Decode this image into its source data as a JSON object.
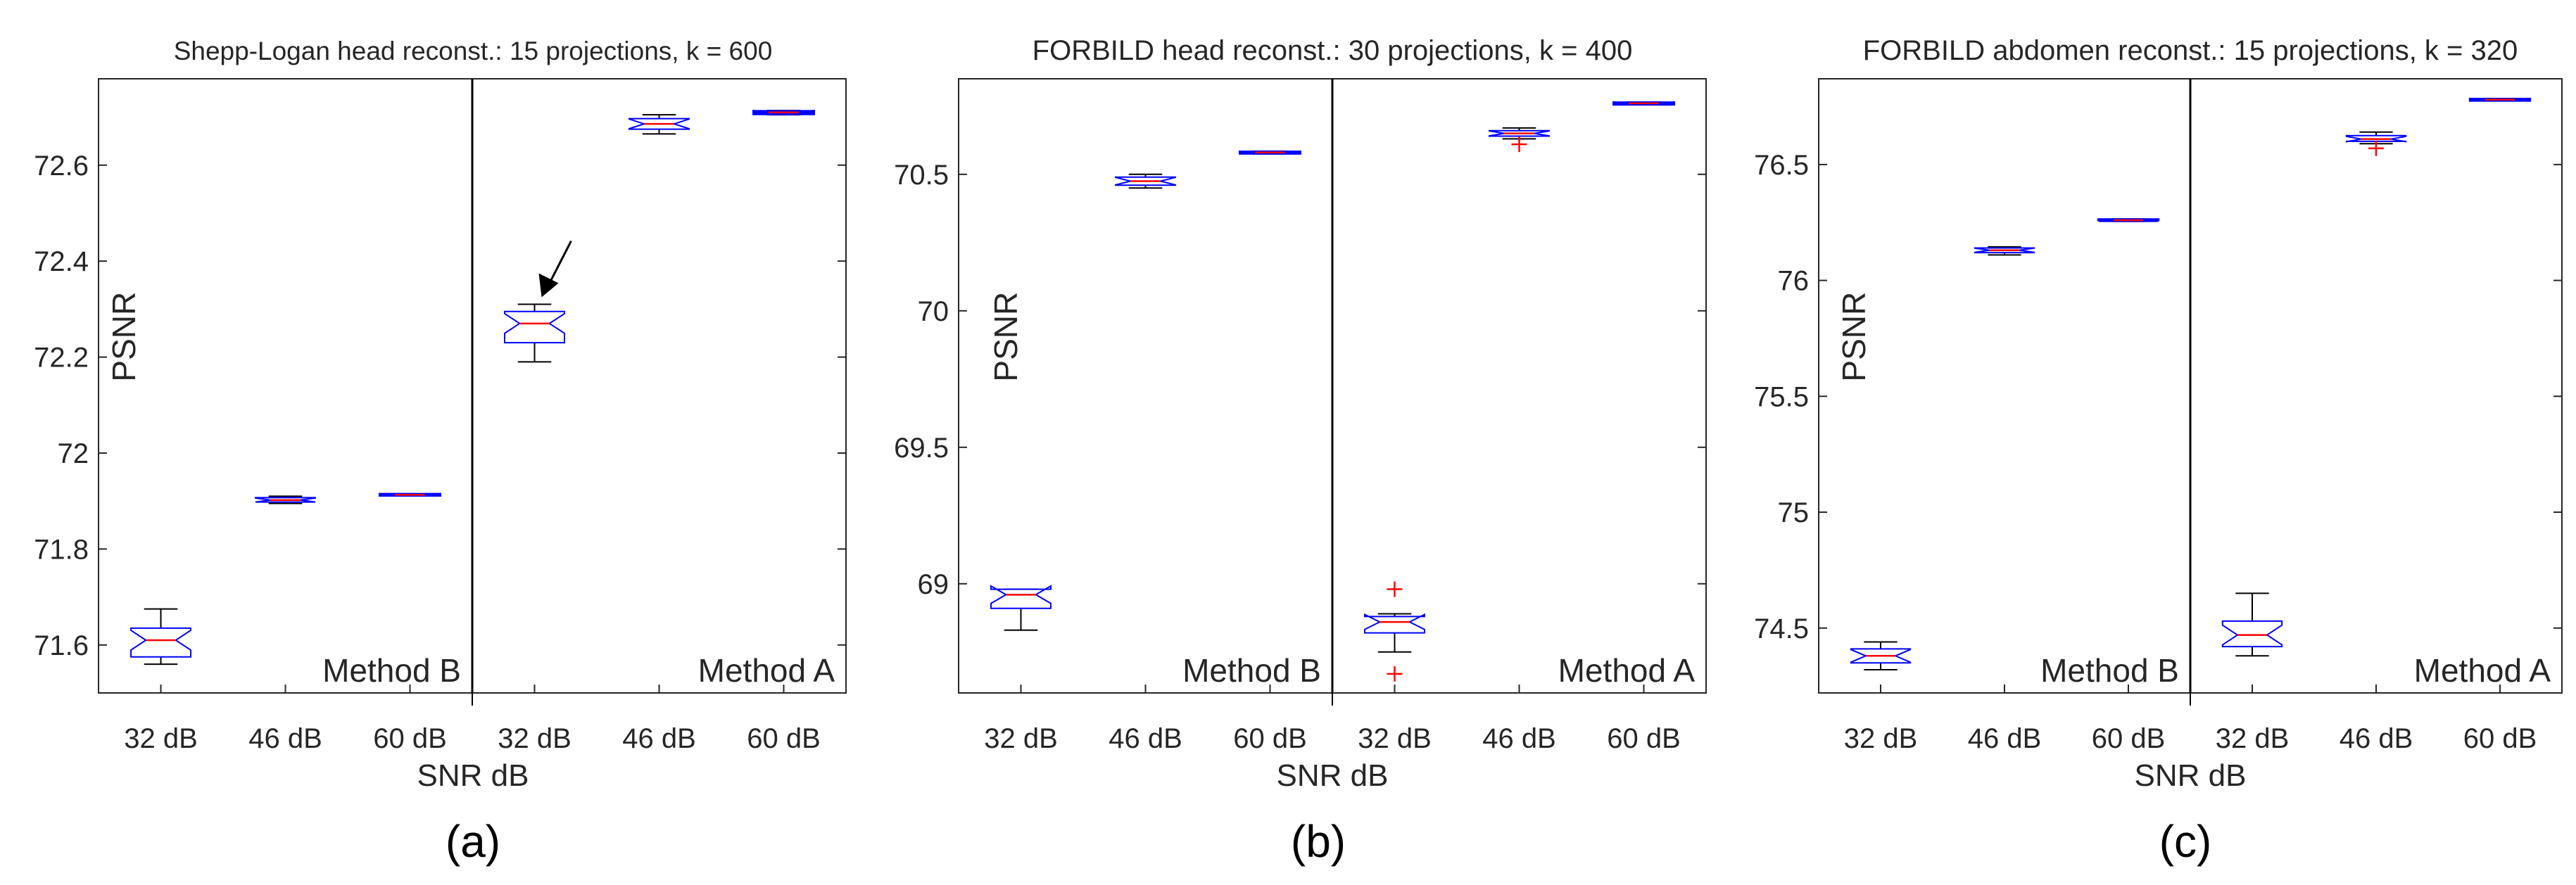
{
  "figure": {
    "xlabel_common": "SNR dB",
    "colors": {
      "axis": "#262626",
      "box": "#0000ff",
      "median": "#ff0000",
      "outlier": "#ff0000",
      "whisker": "#000000"
    }
  },
  "chart_data": [
    {
      "type": "box",
      "title": "Shepp-Logan head reconst.: 15 projections, k = 600",
      "caption": "(a)",
      "xlabel": "SNR dB",
      "ylabel": "PSNR",
      "ylim": [
        71.5,
        72.78
      ],
      "yticks": [
        71.6,
        71.8,
        72,
        72.2,
        72.4,
        72.6
      ],
      "ytick_labels": [
        "71.6",
        "71.8",
        "72",
        "72.2",
        "72.4",
        "72.6"
      ],
      "categories": [
        "32 dB",
        "46 dB",
        "60 dB",
        "32 dB",
        "46 dB",
        "60 dB"
      ],
      "groups": [
        "Method B",
        "Method A"
      ],
      "annotation": "arrow pointing to Method A, 32 dB box",
      "boxes": [
        {
          "label": "32 dB",
          "group": "Method B",
          "whisker_low": 71.56,
          "q1": 71.575,
          "median": 71.61,
          "q3": 71.635,
          "whisker_high": 71.675,
          "outliers": []
        },
        {
          "label": "46 dB",
          "group": "Method B",
          "whisker_low": 71.895,
          "q1": 71.898,
          "median": 71.902,
          "q3": 71.907,
          "whisker_high": 71.91,
          "outliers": []
        },
        {
          "label": "60 dB",
          "group": "Method B",
          "whisker_low": 71.911,
          "q1": 71.912,
          "median": 71.913,
          "q3": 71.914,
          "whisker_high": 71.915,
          "outliers": []
        },
        {
          "label": "32 dB",
          "group": "Method A",
          "whisker_low": 72.19,
          "q1": 72.23,
          "median": 72.27,
          "q3": 72.295,
          "whisker_high": 72.31,
          "outliers": []
        },
        {
          "label": "46 dB",
          "group": "Method A",
          "whisker_low": 72.665,
          "q1": 72.675,
          "median": 72.686,
          "q3": 72.697,
          "whisker_high": 72.705,
          "outliers": []
        },
        {
          "label": "60 dB",
          "group": "Method A",
          "whisker_low": 72.705,
          "q1": 72.707,
          "median": 72.71,
          "q3": 72.712,
          "whisker_high": 72.714,
          "outliers": []
        }
      ]
    },
    {
      "type": "box",
      "title": "FORBILD head reconst.: 30 projections, k = 400",
      "caption": "(b)",
      "xlabel": "SNR dB",
      "ylabel": "PSNR",
      "ylim": [
        68.6,
        70.85
      ],
      "yticks": [
        69,
        69.5,
        70,
        70.5
      ],
      "ytick_labels": [
        "69",
        "69.5",
        "70",
        "70.5"
      ],
      "categories": [
        "32 dB",
        "46 dB",
        "60 dB",
        "32 dB",
        "46 dB",
        "60 dB"
      ],
      "groups": [
        "Method B",
        "Method A"
      ],
      "boxes": [
        {
          "label": "32 dB",
          "group": "Method B",
          "whisker_low": 68.83,
          "q1": 68.91,
          "median": 68.96,
          "q3": 68.98,
          "whisker_high": 68.98,
          "outliers": []
        },
        {
          "label": "46 dB",
          "group": "Method B",
          "whisker_low": 70.45,
          "q1": 70.46,
          "median": 70.475,
          "q3": 70.49,
          "whisker_high": 70.5,
          "outliers": []
        },
        {
          "label": "60 dB",
          "group": "Method B",
          "whisker_low": 70.575,
          "q1": 70.577,
          "median": 70.58,
          "q3": 70.582,
          "whisker_high": 70.585,
          "outliers": []
        },
        {
          "label": "32 dB",
          "group": "Method A",
          "whisker_low": 68.75,
          "q1": 68.82,
          "median": 68.86,
          "q3": 68.88,
          "whisker_high": 68.89,
          "outliers": [
            68.98,
            68.67
          ]
        },
        {
          "label": "46 dB",
          "group": "Method A",
          "whisker_low": 70.63,
          "q1": 70.64,
          "median": 70.65,
          "q3": 70.66,
          "whisker_high": 70.67,
          "outliers": [
            70.61
          ]
        },
        {
          "label": "60 dB",
          "group": "Method A",
          "whisker_low": 70.755,
          "q1": 70.757,
          "median": 70.76,
          "q3": 70.762,
          "whisker_high": 70.765,
          "outliers": []
        }
      ]
    },
    {
      "type": "box",
      "title": "FORBILD abdomen reconst.: 15 projections, k = 320",
      "caption": "(c)",
      "xlabel": "SNR dB",
      "ylabel": "PSNR",
      "ylim": [
        74.22,
        76.87
      ],
      "yticks": [
        74.5,
        75,
        75.5,
        76,
        76.5
      ],
      "ytick_labels": [
        "74.5",
        "75",
        "75.5",
        "76",
        "76.5"
      ],
      "categories": [
        "32 dB",
        "46 dB",
        "60 dB",
        "32 dB",
        "46 dB",
        "60 dB"
      ],
      "groups": [
        "Method B",
        "Method A"
      ],
      "boxes": [
        {
          "label": "32 dB",
          "group": "Method B",
          "whisker_low": 74.32,
          "q1": 74.35,
          "median": 74.38,
          "q3": 74.41,
          "whisker_high": 74.44,
          "outliers": []
        },
        {
          "label": "46 dB",
          "group": "Method B",
          "whisker_low": 76.11,
          "q1": 76.12,
          "median": 76.13,
          "q3": 76.14,
          "whisker_high": 76.145,
          "outliers": []
        },
        {
          "label": "60 dB",
          "group": "Method B",
          "whisker_low": 76.255,
          "q1": 76.258,
          "median": 76.26,
          "q3": 76.262,
          "whisker_high": 76.265,
          "outliers": []
        },
        {
          "label": "32 dB",
          "group": "Method A",
          "whisker_low": 74.38,
          "q1": 74.42,
          "median": 74.47,
          "q3": 74.53,
          "whisker_high": 74.65,
          "outliers": []
        },
        {
          "label": "46 dB",
          "group": "Method A",
          "whisker_low": 76.59,
          "q1": 76.6,
          "median": 76.61,
          "q3": 76.625,
          "whisker_high": 76.64,
          "outliers": [
            76.57
          ]
        },
        {
          "label": "60 dB",
          "group": "Method A",
          "whisker_low": 76.775,
          "q1": 76.777,
          "median": 76.78,
          "q3": 76.782,
          "whisker_high": 76.785,
          "outliers": []
        }
      ]
    }
  ]
}
